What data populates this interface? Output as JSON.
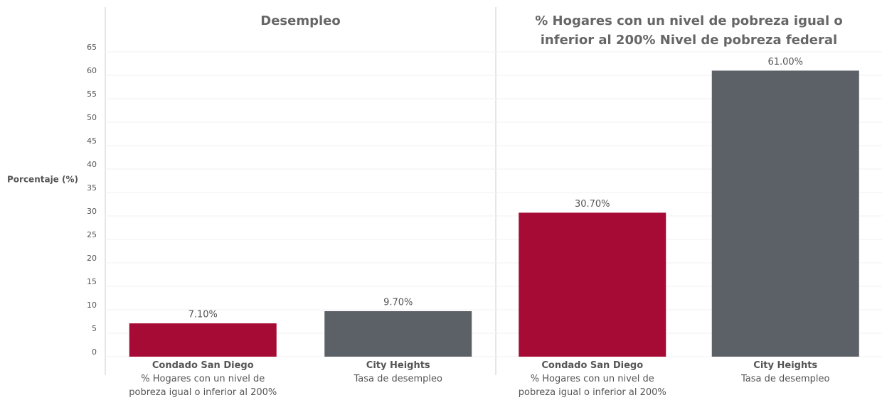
{
  "chart_data": [
    {
      "type": "bar",
      "title": "Desempleo",
      "ylabel": "Porcentaje (%)",
      "categories": [
        "Condado San Diego",
        "City Heights"
      ],
      "category_notes": [
        "% Hogares con un nivel de pobreza igual o inferior al 200%",
        "Tasa de desempleo"
      ],
      "values": [
        7.1,
        9.7
      ],
      "value_labels": [
        "7.10%",
        "9.70%"
      ],
      "colors": [
        "#a50b35",
        "#5c6067"
      ],
      "ylim": [
        0,
        65
      ],
      "yticks": [
        0,
        5,
        10,
        15,
        20,
        25,
        30,
        35,
        40,
        45,
        50,
        55,
        60,
        65
      ],
      "grid": true
    },
    {
      "type": "bar",
      "title": "% Hogares con un nivel de pobreza igual o inferior al 200% Nivel de pobreza federal",
      "categories": [
        "Condado San Diego",
        "City Heights"
      ],
      "category_notes": [
        "% Hogares con un nivel de pobreza igual o inferior al 200%",
        "Tasa de desempleo"
      ],
      "values": [
        30.7,
        61.0
      ],
      "value_labels": [
        "30.70%",
        "61.00%"
      ],
      "colors": [
        "#a50b35",
        "#5c6067"
      ],
      "ylim": [
        0,
        65
      ],
      "grid": true
    }
  ]
}
